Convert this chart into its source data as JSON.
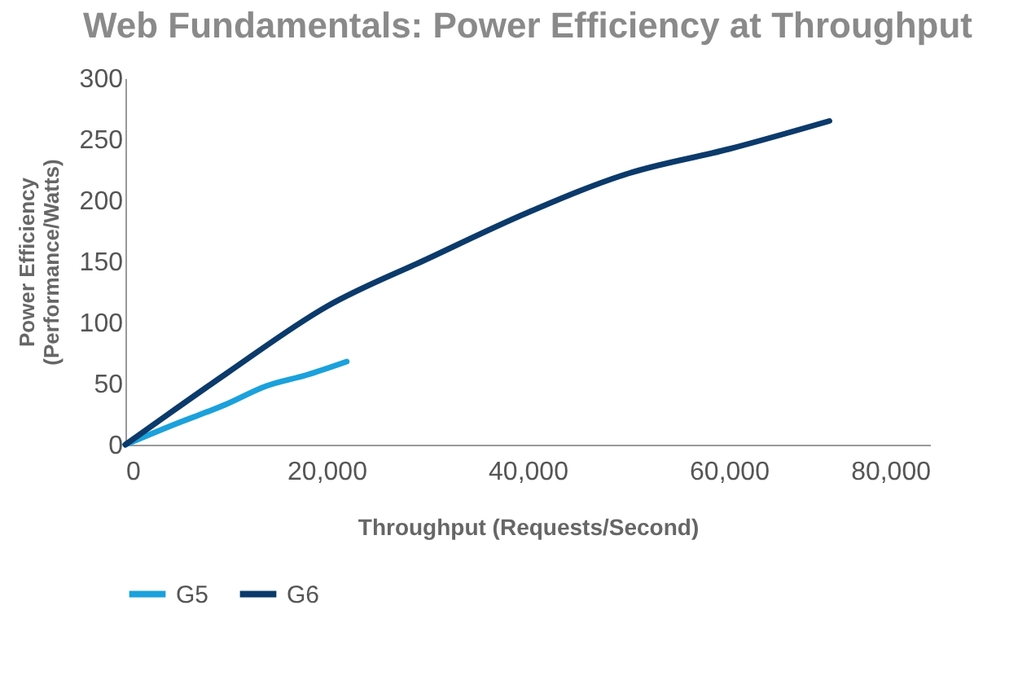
{
  "chart_data": {
    "type": "line",
    "title": "Web Fundamentals: Power Efficiency at Throughput",
    "xlabel": "Throughput (Requests/Second)",
    "ylabel": "Power Efficiency (Performance/Watts)",
    "xlim": [
      0,
      80000
    ],
    "xticks": [
      {
        "value": 0,
        "label": "0"
      },
      {
        "value": 20000,
        "label": "20,000"
      },
      {
        "value": 40000,
        "label": "40,000"
      },
      {
        "value": 60000,
        "label": "60,000"
      },
      {
        "value": 80000,
        "label": "80,000"
      }
    ],
    "ylim": [
      0,
      300
    ],
    "yticks": [
      0,
      50,
      100,
      150,
      200,
      250,
      300
    ],
    "grid": false,
    "legend": "bottom",
    "marker": "none",
    "line_style": "solid",
    "series": [
      {
        "name": "G5",
        "color": "#1ba1db",
        "x": [
          0,
          5000,
          10000,
          14000,
          18000,
          22000
        ],
        "values": [
          0,
          17,
          33,
          48,
          57,
          68
        ]
      },
      {
        "name": "G6",
        "color": "#0b3a6b",
        "x": [
          0,
          10000,
          20000,
          30000,
          40000,
          50000,
          60000,
          70000
        ],
        "values": [
          0,
          58,
          113,
          152,
          190,
          222,
          242,
          265
        ]
      }
    ]
  }
}
